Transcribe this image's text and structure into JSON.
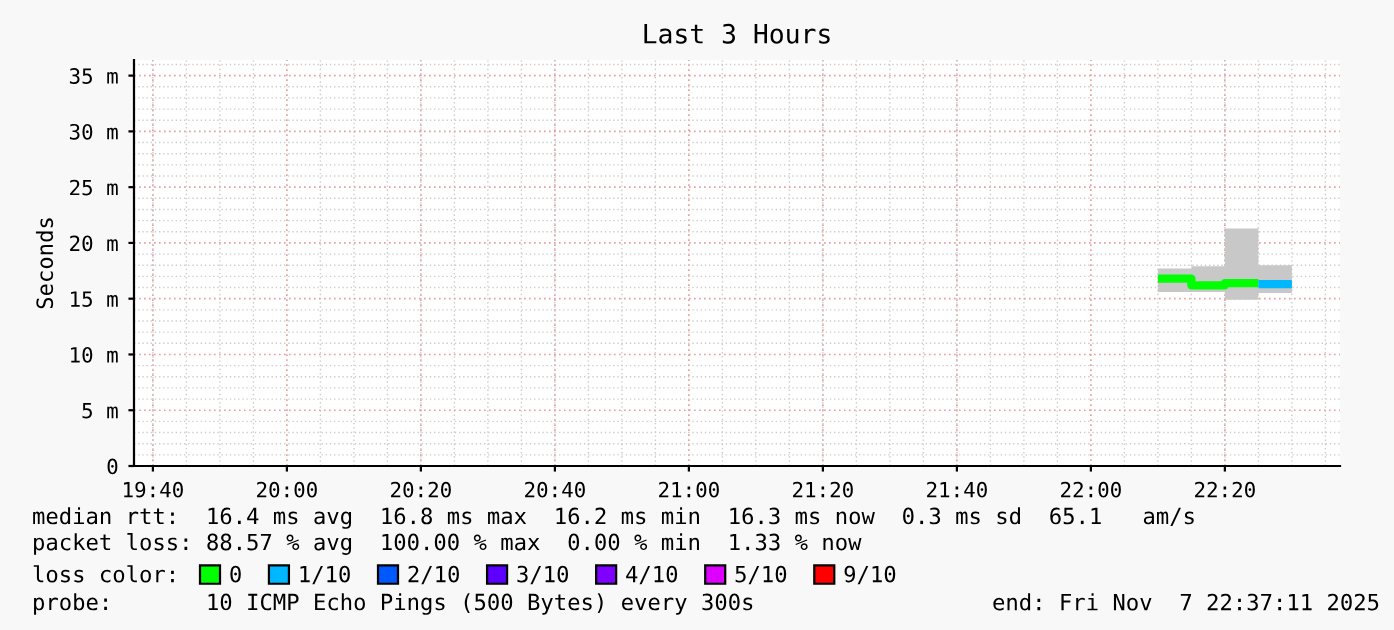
{
  "chart_data": {
    "type": "line",
    "title": "Last 3 Hours",
    "ylabel": "Seconds",
    "legend_title": "loss color:",
    "series": [
      {
        "name": "0",
        "color": "#00ff00",
        "x": [
          22.1667,
          22.25,
          22.25,
          22.3333,
          22.3333,
          22.4167,
          22.4167,
          22.5
        ],
        "values": [
          16.8,
          16.8,
          16.2,
          16.2,
          16.4,
          16.4,
          null,
          null
        ],
        "lower": [
          15.6,
          15.6,
          15.6,
          15.6,
          14.9,
          14.9,
          15.5,
          15.5
        ],
        "upper": [
          17.7,
          17.7,
          17.9,
          17.9,
          21.3,
          21.3,
          18.0,
          18.0
        ]
      },
      {
        "name": "1/10",
        "color": "#00b8ff",
        "x": [
          22.4167,
          22.5
        ],
        "values": [
          16.3,
          16.3
        ]
      },
      {
        "name": "2/10",
        "color": "#0059ff"
      },
      {
        "name": "3/10",
        "color": "#5e00ff"
      },
      {
        "name": "4/10",
        "color": "#7e00ff"
      },
      {
        "name": "5/10",
        "color": "#dd00ff"
      },
      {
        "name": "9/10",
        "color": "#ff0000"
      }
    ],
    "xlim": [
      19.6197,
      22.6197
    ],
    "xticks": [
      {
        "value": 19.6667,
        "label": "19:40"
      },
      {
        "value": 20.0,
        "label": "20:00"
      },
      {
        "value": 20.3333,
        "label": "20:20"
      },
      {
        "value": 20.6667,
        "label": "20:40"
      },
      {
        "value": 21.0,
        "label": "21:00"
      },
      {
        "value": 21.3333,
        "label": "21:20"
      },
      {
        "value": 21.6667,
        "label": "21:40"
      },
      {
        "value": 22.0,
        "label": "22:00"
      },
      {
        "value": 22.3333,
        "label": "22:20"
      }
    ],
    "ylim": [
      0,
      36.4
    ],
    "yticks": [
      0,
      {
        "value": 5,
        "label": "5 m"
      },
      {
        "value": 10,
        "label": "10 m"
      },
      {
        "value": 15,
        "label": "15 m"
      },
      {
        "value": 20,
        "label": "20 m"
      },
      {
        "value": 25,
        "label": "25 m"
      },
      {
        "value": 30,
        "label": "30 m"
      },
      {
        "value": 35,
        "label": "35 m"
      }
    ],
    "grid": true,
    "legend": "bottom",
    "marker": "none",
    "annotations": [
      "median rtt:  16.4 ms avg  16.8 ms max  16.2 ms min  16.3 ms now  0.3 ms sd  65.1   am/s",
      "packet loss: 88.57 % avg  100.00 % max  0.00 % min  1.33 % now",
      "probe:       10 ICMP Echo Pings (500 Bytes) every 300s",
      "end: Fri Nov  7 22:37:11 2025"
    ]
  }
}
